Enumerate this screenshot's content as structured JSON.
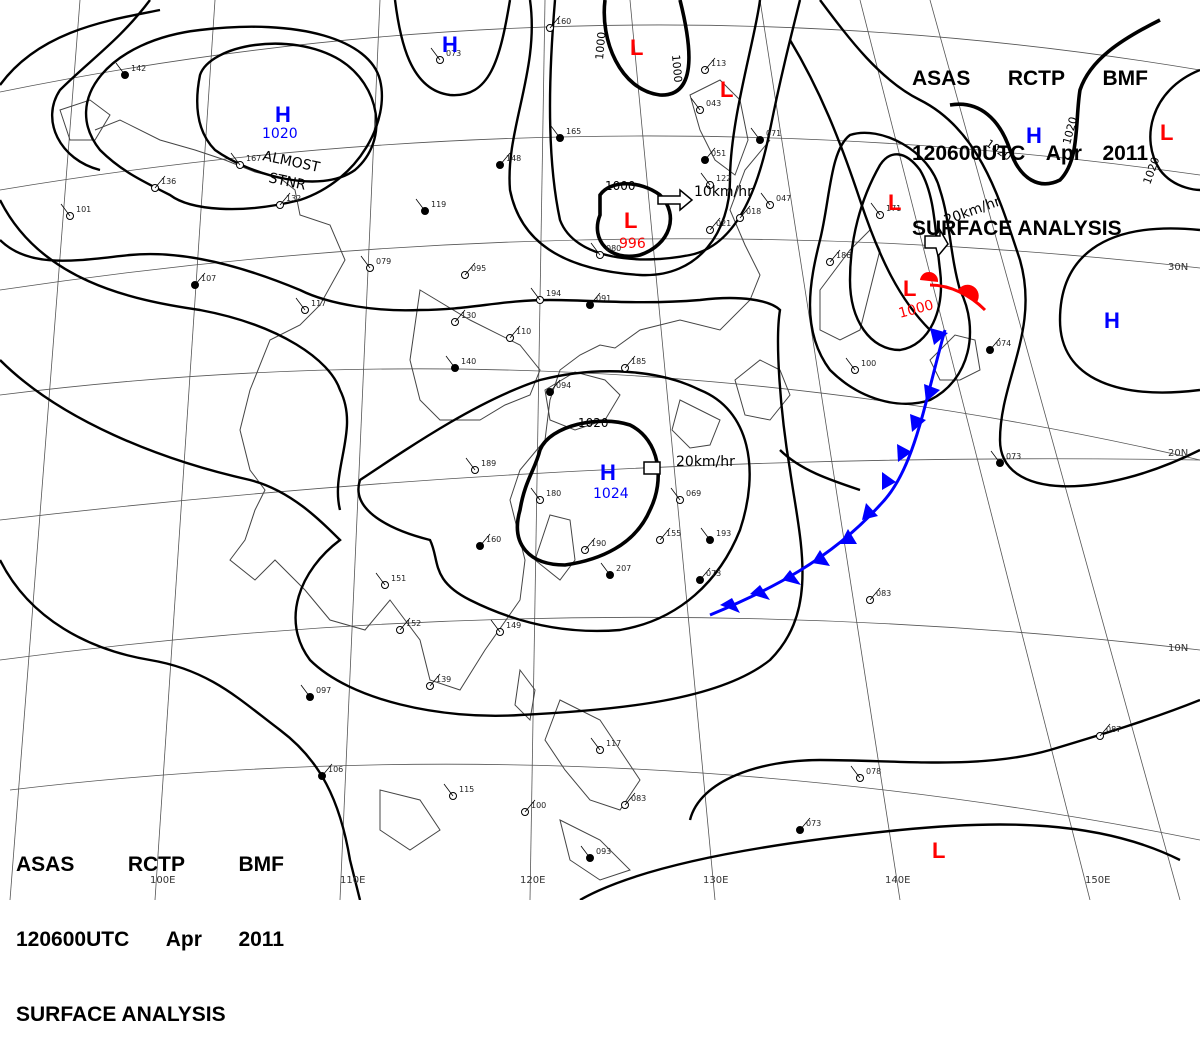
{
  "header_top_right": {
    "line1": [
      "ASAS",
      "RCTP",
      "BMF"
    ],
    "line2": [
      "120600UTC",
      "Apr",
      "2011"
    ],
    "line3": "SURFACE ANALYSIS"
  },
  "header_bottom_left": {
    "line1": [
      "ASAS",
      "RCTP",
      "BMF"
    ],
    "line2": [
      "120600UTC",
      "Apr",
      "2011"
    ],
    "line3": "SURFACE ANALYSIS"
  },
  "longitude_labels": [
    "100E",
    "110E",
    "120E",
    "130E",
    "140E",
    "150E"
  ],
  "latitude_labels": [
    "30N",
    "20N",
    "10N"
  ],
  "isobar_labels": [
    "1000",
    "1000",
    "1000",
    "1020",
    "1020",
    "1020",
    "1020"
  ],
  "pressure_systems": [
    {
      "type": "H",
      "value": "1020",
      "color": "#0000ff"
    },
    {
      "type": "H",
      "value": "",
      "color": "#0000ff"
    },
    {
      "type": "H",
      "value": "",
      "color": "#0000ff"
    },
    {
      "type": "H",
      "value": "1024",
      "color": "#0000ff"
    },
    {
      "type": "H",
      "value": "",
      "color": "#0000ff"
    },
    {
      "type": "L",
      "value": "",
      "color": "#ff0000"
    },
    {
      "type": "L",
      "value": "",
      "color": "#ff0000"
    },
    {
      "type": "L",
      "value": "996",
      "color": "#ff0000"
    },
    {
      "type": "L",
      "value": "",
      "color": "#ff0000"
    },
    {
      "type": "L",
      "value": "1000",
      "color": "#ff0000"
    },
    {
      "type": "L",
      "value": "",
      "color": "#ff0000"
    },
    {
      "type": "L",
      "value": "",
      "color": "#ff0000"
    }
  ],
  "annotations": {
    "almost": "ALMOST",
    "stnr": "STNR"
  },
  "movement": [
    "10km/hr",
    "20km/hr",
    "20km/hr"
  ],
  "stations": [
    "142",
    "136",
    "101",
    "107",
    "117",
    "130",
    "140",
    "110",
    "189",
    "160",
    "151",
    "152",
    "097",
    "139",
    "149",
    "106",
    "115",
    "100",
    "093",
    "083",
    "117",
    "094",
    "180",
    "190",
    "207",
    "185",
    "194",
    "091",
    "079",
    "095",
    "119",
    "132",
    "167",
    "148",
    "073",
    "160",
    "165",
    "113",
    "122",
    "051",
    "043",
    "018",
    "071",
    "021",
    "047",
    "073",
    "069",
    "155",
    "193",
    "186",
    "171",
    "074",
    "100",
    "083",
    "073",
    "087",
    "078",
    "073",
    "080"
  ]
}
